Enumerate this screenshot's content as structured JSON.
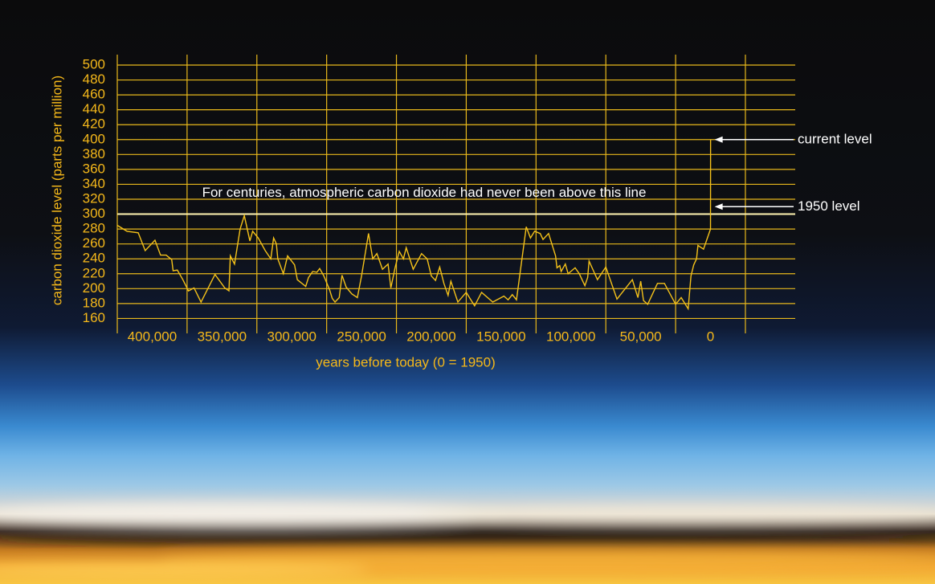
{
  "chart_data": {
    "type": "line",
    "y_label": "carbon dioxide level (parts per million)",
    "x_label": "years before today (0 = 1950)",
    "x": [
      425000,
      418000,
      410000,
      405000,
      398000,
      394000,
      390000,
      386000,
      385000,
      382000,
      378000,
      374000,
      370000,
      365000,
      355000,
      348000,
      345000,
      344000,
      341000,
      337000,
      334000,
      330000,
      328000,
      324000,
      319000,
      315000,
      313000,
      311000,
      310000,
      306000,
      303000,
      298000,
      296000,
      290000,
      288000,
      285000,
      282000,
      280000,
      277000,
      273000,
      271000,
      269000,
      266000,
      264000,
      261000,
      257000,
      253000,
      250000,
      245000,
      242000,
      239000,
      235000,
      231000,
      229000,
      226000,
      223000,
      220000,
      218000,
      213000,
      207000,
      203000,
      200000,
      197000,
      194000,
      191000,
      188000,
      186000,
      181000,
      175000,
      172000,
      169000,
      164000,
      156000,
      148000,
      145000,
      142000,
      139000,
      132000,
      129000,
      126000,
      122000,
      120000,
      116000,
      111000,
      110000,
      108000,
      107000,
      104000,
      102000,
      97000,
      94000,
      90000,
      88000,
      87000,
      81000,
      75000,
      67000,
      56000,
      52000,
      50000,
      48000,
      45000,
      41000,
      38000,
      33000,
      25000,
      21000,
      16000,
      14000,
      12000,
      10000,
      9000,
      5000,
      0,
      -60
    ],
    "series": [
      {
        "color": "#f5c21a",
        "values": [
          285,
          277,
          275,
          251,
          265,
          245,
          245,
          239,
          224,
          225,
          212,
          197,
          201,
          182,
          219,
          201,
          197,
          244,
          233,
          280,
          298,
          264,
          277,
          268,
          251,
          240,
          268,
          260,
          240,
          220,
          244,
          232,
          212,
          203,
          215,
          223,
          222,
          227,
          217,
          199,
          187,
          182,
          188,
          218,
          202,
          193,
          188,
          217,
          274,
          240,
          247,
          226,
          233,
          201,
          228,
          250,
          240,
          255,
          226,
          247,
          240,
          217,
          211,
          229,
          207,
          191,
          210,
          182,
          195,
          186,
          177,
          195,
          182,
          190,
          185,
          192,
          185,
          283,
          268,
          277,
          274,
          266,
          274,
          244,
          228,
          231,
          223,
          233,
          220,
          228,
          220,
          204,
          215,
          237,
          212,
          229,
          186,
          212,
          188,
          210,
          184,
          179,
          195,
          207,
          207,
          179,
          188,
          173,
          217,
          232,
          240,
          258,
          253,
          280,
          400
        ]
      }
    ],
    "xlim": [
      425000,
      -60700
    ],
    "ylim": [
      140,
      514
    ],
    "xticks": [
      {
        "value": 400000,
        "label": "400,000"
      },
      {
        "value": 350000,
        "label": "350,000"
      },
      {
        "value": 300000,
        "label": "300,000"
      },
      {
        "value": 250000,
        "label": "250,000"
      },
      {
        "value": 200000,
        "label": "200,000"
      },
      {
        "value": 150000,
        "label": "150,000"
      },
      {
        "value": 100000,
        "label": "100,000"
      },
      {
        "value": 50000,
        "label": "50,000"
      },
      0
    ],
    "yticks": [
      160,
      180,
      200,
      220,
      240,
      260,
      280,
      300,
      320,
      340,
      360,
      380,
      400,
      420,
      440,
      460,
      480,
      500
    ],
    "x_grid": [
      425000,
      375000,
      325000,
      275000,
      225000,
      175000,
      125000,
      75000,
      25000,
      -25000
    ],
    "grid": true,
    "grid_color": "#e8b81c",
    "reference_line": {
      "y": 300,
      "text": "For centuries, atmospheric carbon dioxide had never been above this line"
    },
    "annotations": [
      {
        "text": "current level",
        "y": 400
      },
      {
        "text": "1950 level",
        "y": 310
      }
    ]
  }
}
